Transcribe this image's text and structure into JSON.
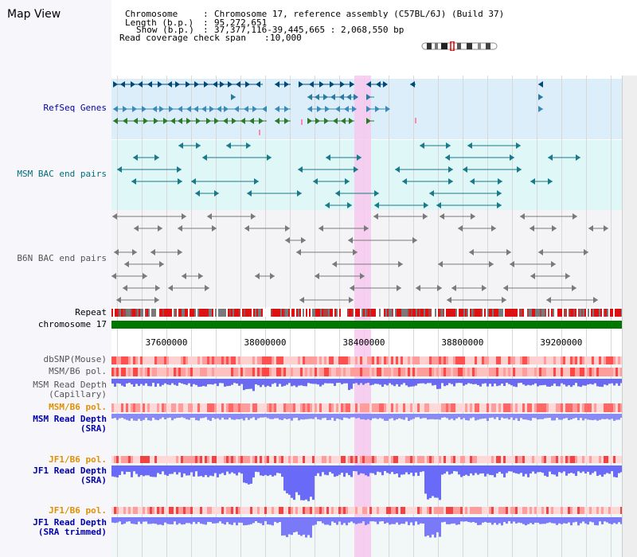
{
  "title": "Map View",
  "info": {
    "chromosome_key": "Chromosome",
    "chromosome_value": "Chromosome 17, reference assembly (C57BL/6J) (Build 37)",
    "length_key": "Length (b.p.)",
    "length_value": "95,272,651",
    "show_key": "Show (b.p.)",
    "show_value": "37,377,116-39,445,665 : 2,068,550 bp",
    "coverage_key": "Read coverage check span",
    "coverage_value": "10,000"
  },
  "tracks": {
    "refseq": "RefSeq Genes",
    "msm_bac": "MSM BAC end pairs",
    "b6n_bac": "B6N BAC end pairs",
    "repeat": "Repeat",
    "chromosome": "chromosome 17",
    "dbsnp": "dbSNP(Mouse)",
    "msm_pol": "MSM/B6 pol.",
    "msm_depth_cap_1": "MSM Read Depth",
    "msm_depth_cap_2": "(Capillary)",
    "msm_pol2": "MSM/B6 pol.",
    "msm_depth_sra_1": "MSM Read Depth",
    "msm_depth_sra_2": "(SRA)",
    "jf1_pol": "JF1/B6 pol.",
    "jf1_depth_sra_1": "JF1 Read Depth",
    "jf1_depth_sra_2": "(SRA)",
    "jf1_pol2": "JF1/B6 pol.",
    "jf1_depth_trim_1": "JF1 Read Depth",
    "jf1_depth_trim_2": "(SRA trimmed)"
  },
  "axis": {
    "ticks": [
      {
        "value": 37600000,
        "label": "37600000"
      },
      {
        "value": 38000000,
        "label": "38000000"
      },
      {
        "value": 38400000,
        "label": "38400000"
      },
      {
        "value": 38800000,
        "label": "38800000"
      },
      {
        "value": 39200000,
        "label": "39200000"
      }
    ],
    "start": 37377116,
    "end": 39445665
  },
  "highlight": {
    "start": 38360000,
    "end": 38430000
  },
  "colors": {
    "refseq_bg": "#dbeefa",
    "msm_bac_bg": "#e0f7f7",
    "b6n_bac_bg": "#f4f4f6",
    "chromosome_bar": "#007700",
    "label_blue": "#0000aa",
    "label_teal": "#006d7a",
    "label_orange": "#e09000",
    "label_gray": "#555555",
    "depth_blue": "#3333ff",
    "pol_red": "#ff5050",
    "highlight": "#f7c8ef"
  }
}
